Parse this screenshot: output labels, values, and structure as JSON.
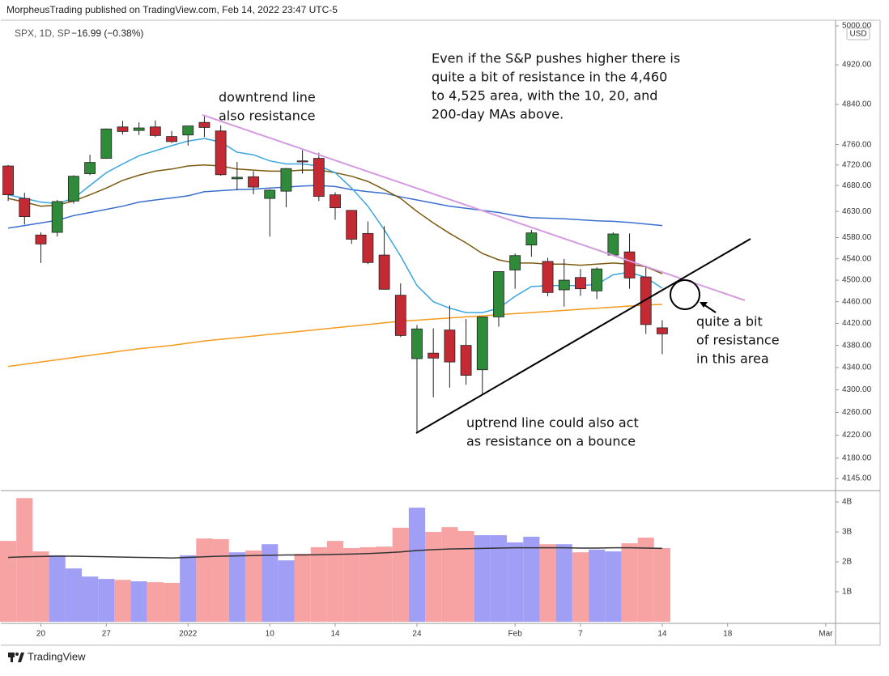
{
  "header": {
    "publisher": "MorpheusTrading published on TradingView.com, Feb 14, 2022 23:47 UTC-5",
    "symbol": "SPX, 1D, SP",
    "change": "−16.99 (−0.38%)",
    "currency": "USD"
  },
  "footer": {
    "brand": "TradingView"
  },
  "annotations": [
    {
      "lines": [
        "downtrend line",
        "also resistance"
      ]
    },
    {
      "lines": [
        "Even if the S&P pushes higher there is",
        "quite a bit of resistance in the 4,460",
        "to 4,525 area, with the 10, 20, and",
        "200-day MAs above."
      ]
    },
    {
      "lines": [
        "uptrend line could also act",
        "as resistance on a bounce"
      ]
    },
    {
      "lines": [
        "quite a bit",
        "of resistance",
        "in this area"
      ]
    }
  ],
  "chart_data": [
    {
      "type": "candlestick",
      "log_scale": true,
      "xlim": [
        -0.5,
        50.6
      ],
      "ylim": [
        4145,
        5000
      ],
      "yticks": [
        {
          "value": 5000,
          "label": "5000.00"
        },
        {
          "value": 4920,
          "label": "4920.00"
        },
        {
          "value": 4840,
          "label": "4840.00"
        },
        {
          "value": 4760,
          "label": "4760.00"
        },
        {
          "value": 4720,
          "label": "4720.00"
        },
        {
          "value": 4680,
          "label": "4680.00"
        },
        {
          "value": 4630,
          "label": "4630.00"
        },
        {
          "value": 4580,
          "label": "4580.00"
        },
        {
          "value": 4540,
          "label": "4540.00"
        },
        {
          "value": 4500,
          "label": "4500.00"
        },
        {
          "value": 4460,
          "label": "4460.00"
        },
        {
          "value": 4420,
          "label": "4420.00"
        },
        {
          "value": 4380,
          "label": "4380.00"
        },
        {
          "value": 4340,
          "label": "4340.00"
        },
        {
          "value": 4300,
          "label": "4300.00"
        },
        {
          "value": 4260,
          "label": "4260.00"
        },
        {
          "value": 4220,
          "label": "4220.00"
        },
        {
          "value": 4180,
          "label": "4180.00"
        },
        {
          "value": 4145,
          "label": "4145.00"
        }
      ],
      "up_color": "#2f8a3a",
      "down_color": "#c42a34",
      "open": [
        4718,
        4655,
        4585,
        4590,
        4650,
        4703,
        4733,
        4795,
        4788,
        4795,
        4776,
        4779,
        4804,
        4787,
        4693,
        4697,
        4655,
        4669,
        4728,
        4733,
        4662,
        4632,
        4588,
        4547,
        4472,
        4356,
        4366,
        4408,
        4380,
        4336,
        4432,
        4519,
        4566,
        4535,
        4482,
        4505,
        4480,
        4547,
        4553,
        4506,
        4412
      ],
      "high": [
        4720,
        4666,
        4590,
        4652,
        4700,
        4740,
        4792,
        4807,
        4804,
        4808,
        4787,
        4797,
        4819,
        4798,
        4726,
        4708,
        4673,
        4714,
        4749,
        4744,
        4667,
        4632,
        4611,
        4602,
        4494,
        4417,
        4411,
        4453,
        4428,
        4432,
        4516,
        4550,
        4595,
        4542,
        4540,
        4521,
        4524,
        4590,
        4588,
        4527,
        4426
      ],
      "low": [
        4650,
        4605,
        4532,
        4582,
        4645,
        4700,
        4732,
        4780,
        4779,
        4775,
        4763,
        4758,
        4775,
        4699,
        4671,
        4663,
        4582,
        4638,
        4703,
        4650,
        4614,
        4568,
        4530,
        4483,
        4395,
        4223,
        4287,
        4304,
        4309,
        4292,
        4414,
        4484,
        4544,
        4470,
        4451,
        4471,
        4465,
        4547,
        4484,
        4401,
        4364
      ],
      "close": [
        4662,
        4620,
        4568,
        4649,
        4698,
        4725,
        4791,
        4786,
        4793,
        4778,
        4766,
        4797,
        4794,
        4701,
        4696,
        4677,
        4671,
        4713,
        4726,
        4659,
        4637,
        4577,
        4533,
        4483,
        4398,
        4410,
        4357,
        4350,
        4326,
        4432,
        4516,
        4546,
        4589,
        4477,
        4500,
        4484,
        4521,
        4587,
        4504,
        4418,
        4401
      ],
      "series": [
        {
          "color": "#3aa6e0",
          "values": [
            4662,
            4655,
            4648,
            4645,
            4655,
            4680,
            4705,
            4722,
            4738,
            4748,
            4758,
            4767,
            4772,
            4765,
            4745,
            4740,
            4728,
            4722,
            4722,
            4718,
            4705,
            4675,
            4640,
            4595,
            4545,
            4490,
            4460,
            4448,
            4440,
            4440,
            4448,
            4470,
            4488,
            4490,
            4490,
            4490,
            4492,
            4510,
            4515,
            4505,
            4485
          ]
        },
        {
          "color": "#7a5a10",
          "values": [
            4655,
            4648,
            4640,
            4642,
            4650,
            4662,
            4675,
            4690,
            4700,
            4708,
            4712,
            4718,
            4720,
            4718,
            4712,
            4710,
            4708,
            4708,
            4710,
            4710,
            4705,
            4698,
            4688,
            4672,
            4655,
            4630,
            4608,
            4588,
            4570,
            4550,
            4538,
            4532,
            4532,
            4530,
            4530,
            4528,
            4530,
            4532,
            4530,
            4525,
            4512
          ]
        },
        {
          "color": "#3a6fd0",
          "values": [
            4598,
            4603,
            4608,
            4613,
            4622,
            4628,
            4634,
            4640,
            4648,
            4652,
            4656,
            4660,
            4668,
            4670,
            4672,
            4673,
            4675,
            4677,
            4679,
            4680,
            4678,
            4672,
            4668,
            4665,
            4658,
            4652,
            4646,
            4640,
            4636,
            4632,
            4628,
            4622,
            4618,
            4617,
            4616,
            4614,
            4612,
            4611,
            4609,
            4606,
            4603
          ]
        },
        {
          "color": "#f59a1c",
          "values": [
            4342,
            4346,
            4350,
            4354,
            4358,
            4362,
            4366,
            4370,
            4374,
            4377,
            4380,
            4384,
            4388,
            4391,
            4394,
            4397,
            4400,
            4403,
            4406,
            4409,
            4412,
            4415,
            4418,
            4421,
            4424,
            4426,
            4428,
            4430,
            4432,
            4434,
            4436,
            4438,
            4440,
            4442,
            4444,
            4446,
            4448,
            4450,
            4452,
            4454,
            4455
          ]
        }
      ]
    },
    {
      "type": "bar",
      "xlim": [
        -0.5,
        50.6
      ],
      "ylim": [
        0,
        4.38
      ],
      "yticks": [
        {
          "value": 1,
          "label": "1B"
        },
        {
          "value": 2,
          "label": "2B"
        },
        {
          "value": 3,
          "label": "3B"
        },
        {
          "value": 4,
          "label": "4B"
        }
      ],
      "xticks": [
        {
          "value": 2,
          "label": "20"
        },
        {
          "value": 6,
          "label": "27"
        },
        {
          "value": 11,
          "label": "2022"
        },
        {
          "value": 16,
          "label": "10"
        },
        {
          "value": 20,
          "label": "14"
        },
        {
          "value": 25,
          "label": "24"
        },
        {
          "value": 31,
          "label": "Feb"
        },
        {
          "value": 35,
          "label": "7"
        },
        {
          "value": 40,
          "label": "14"
        },
        {
          "value": 44,
          "label": "18"
        },
        {
          "value": 50,
          "label": "Mar"
        }
      ],
      "up_color": "#a09ff5",
      "down_color": "#f7a3a3",
      "values": [
        2.7,
        4.13,
        2.35,
        2.22,
        1.78,
        1.51,
        1.43,
        1.4,
        1.35,
        1.32,
        1.3,
        2.22,
        2.78,
        2.76,
        2.32,
        2.38,
        2.59,
        2.05,
        2.27,
        2.49,
        2.7,
        2.46,
        2.49,
        2.51,
        3.14,
        3.81,
        3.0,
        3.16,
        3.03,
        2.89,
        2.89,
        2.65,
        2.84,
        2.59,
        2.59,
        2.32,
        2.41,
        2.35,
        2.62,
        2.81,
        2.46
      ],
      "series": [
        {
          "color": "#333333",
          "values": [
            2.15,
            2.17,
            2.18,
            2.19,
            2.19,
            2.18,
            2.17,
            2.16,
            2.15,
            2.14,
            2.13,
            2.15,
            2.17,
            2.19,
            2.2,
            2.21,
            2.22,
            2.23,
            2.23,
            2.24,
            2.25,
            2.26,
            2.28,
            2.3,
            2.33,
            2.38,
            2.41,
            2.43,
            2.44,
            2.45,
            2.46,
            2.47,
            2.47,
            2.47,
            2.47,
            2.46,
            2.46,
            2.47,
            2.47,
            2.46,
            2.45
          ]
        }
      ]
    }
  ]
}
